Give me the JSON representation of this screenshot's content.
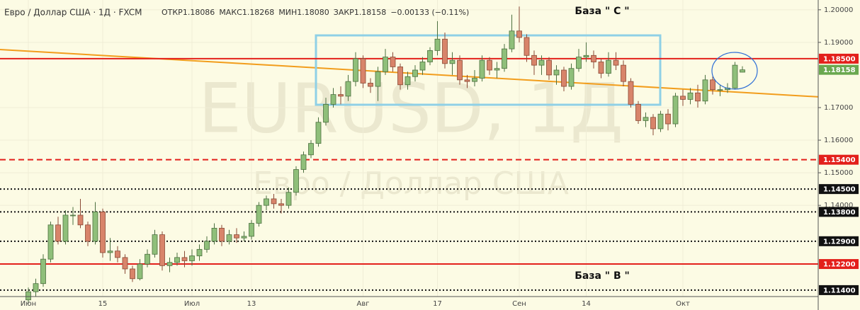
{
  "chart_data": {
    "type": "candlestick",
    "title": "Евро / Доллар США · 1Д · FXCM",
    "stats": [
      "ОТКР1.18086",
      "МАКС1.18268",
      "МИН1.18080",
      "ЗАКР1.18158",
      "−0.00133 (−0.11%)"
    ],
    "watermark": "EURUSD, 1Д",
    "watermark_subtitle": "Евро / Доллар США",
    "annotations": [
      "База  \" С \"",
      "База  \" В \""
    ],
    "categories": [
      "Июн",
      null,
      null,
      null,
      null,
      null,
      null,
      null,
      null,
      null,
      "15",
      null,
      null,
      null,
      null,
      null,
      null,
      null,
      null,
      null,
      null,
      null,
      "Июл",
      null,
      null,
      null,
      null,
      null,
      null,
      null,
      "13",
      null,
      null,
      null,
      null,
      null,
      null,
      null,
      null,
      null,
      null,
      null,
      null,
      null,
      null,
      "Авг",
      null,
      null,
      null,
      null,
      null,
      null,
      null,
      null,
      null,
      "17",
      null,
      null,
      null,
      null,
      null,
      null,
      null,
      null,
      null,
      null,
      "Сен",
      null,
      null,
      null,
      null,
      null,
      null,
      null,
      null,
      "14",
      null,
      null,
      null,
      null,
      null,
      null,
      null,
      null,
      null,
      null,
      null,
      null,
      "Окт",
      null,
      null,
      null,
      null,
      null,
      null,
      null,
      null
    ],
    "open": [
      1.111,
      1.1135,
      1.116,
      1.1235,
      1.134,
      1.129,
      1.137,
      1.137,
      1.134,
      1.129,
      1.138,
      1.1255,
      1.126,
      1.124,
      1.1205,
      1.1175,
      1.122,
      1.125,
      1.131,
      1.1215,
      1.1225,
      1.124,
      1.123,
      1.1245,
      1.1265,
      1.129,
      1.133,
      1.129,
      1.131,
      1.13,
      1.1305,
      1.1345,
      1.14,
      1.142,
      1.1405,
      1.14,
      1.144,
      1.151,
      1.1555,
      1.159,
      1.1655,
      1.171,
      1.174,
      1.1735,
      1.178,
      1.185,
      1.1775,
      1.1765,
      1.181,
      1.1855,
      1.1825,
      1.177,
      1.1795,
      1.1815,
      1.184,
      1.1875,
      1.191,
      1.1835,
      1.1845,
      1.1785,
      1.178,
      1.179,
      1.1845,
      1.1815,
      1.182,
      1.188,
      1.1935,
      1.1915,
      1.186,
      1.183,
      1.1845,
      1.18,
      1.1815,
      1.1765,
      1.182,
      1.1855,
      1.186,
      1.184,
      1.1805,
      1.1845,
      1.183,
      1.178,
      1.171,
      1.166,
      1.167,
      1.1635,
      1.168,
      1.165,
      1.1735,
      1.1725,
      1.1745,
      1.172,
      1.1785,
      1.1755,
      1.1755,
      1.176,
      1.18086
    ],
    "high": [
      1.1148,
      1.1175,
      1.125,
      1.135,
      1.1365,
      1.1385,
      1.1395,
      1.142,
      1.135,
      1.141,
      1.139,
      1.13,
      1.1275,
      1.125,
      1.1215,
      1.1235,
      1.1265,
      1.1325,
      1.132,
      1.124,
      1.1255,
      1.126,
      1.1265,
      1.128,
      1.1305,
      1.1345,
      1.134,
      1.1325,
      1.133,
      1.132,
      1.1355,
      1.141,
      1.143,
      1.1435,
      1.142,
      1.1455,
      1.152,
      1.1565,
      1.16,
      1.167,
      1.173,
      1.176,
      1.1765,
      1.18,
      1.187,
      1.186,
      1.179,
      1.1825,
      1.188,
      1.187,
      1.1835,
      1.181,
      1.183,
      1.1855,
      1.1885,
      1.1965,
      1.193,
      1.187,
      1.186,
      1.18,
      1.1815,
      1.186,
      1.1855,
      1.184,
      1.1895,
      1.1985,
      1.201,
      1.1925,
      1.1875,
      1.186,
      1.1855,
      1.183,
      1.1825,
      1.1835,
      1.188,
      1.19,
      1.1875,
      1.185,
      1.187,
      1.187,
      1.1845,
      1.179,
      1.172,
      1.1685,
      1.168,
      1.169,
      1.1695,
      1.1745,
      1.1755,
      1.176,
      1.177,
      1.18,
      1.1795,
      1.177,
      1.1775,
      1.184,
      1.18268
    ],
    "low": [
      1.1098,
      1.112,
      1.115,
      1.1225,
      1.128,
      1.128,
      1.134,
      1.133,
      1.1275,
      1.128,
      1.124,
      1.123,
      1.1225,
      1.119,
      1.1165,
      1.117,
      1.121,
      1.124,
      1.12,
      1.1195,
      1.1215,
      1.121,
      1.1215,
      1.123,
      1.1255,
      1.128,
      1.1275,
      1.128,
      1.1285,
      1.129,
      1.1295,
      1.1335,
      1.1385,
      1.139,
      1.1375,
      1.139,
      1.143,
      1.15,
      1.1545,
      1.158,
      1.1645,
      1.17,
      1.171,
      1.172,
      1.1765,
      1.176,
      1.1745,
      1.172,
      1.18,
      1.181,
      1.1755,
      1.1755,
      1.178,
      1.18,
      1.183,
      1.186,
      1.182,
      1.18,
      1.177,
      1.176,
      1.1765,
      1.178,
      1.18,
      1.179,
      1.181,
      1.187,
      1.19,
      1.184,
      1.18,
      1.18,
      1.1785,
      1.177,
      1.175,
      1.1755,
      1.181,
      1.184,
      1.182,
      1.179,
      1.1795,
      1.1815,
      1.1765,
      1.17,
      1.165,
      1.164,
      1.1615,
      1.1625,
      1.163,
      1.164,
      1.1705,
      1.171,
      1.17,
      1.171,
      1.174,
      1.1735,
      1.1745,
      1.1755,
      1.1808
    ],
    "close": [
      1.1135,
      1.116,
      1.1235,
      1.134,
      1.129,
      1.137,
      1.137,
      1.134,
      1.129,
      1.138,
      1.1255,
      1.126,
      1.124,
      1.1205,
      1.1175,
      1.122,
      1.125,
      1.131,
      1.1215,
      1.1225,
      1.124,
      1.123,
      1.1245,
      1.1265,
      1.129,
      1.133,
      1.129,
      1.131,
      1.13,
      1.1305,
      1.1345,
      1.14,
      1.142,
      1.1405,
      1.14,
      1.144,
      1.151,
      1.1555,
      1.159,
      1.1655,
      1.171,
      1.174,
      1.1735,
      1.178,
      1.185,
      1.1775,
      1.1765,
      1.181,
      1.1855,
      1.1825,
      1.177,
      1.1795,
      1.1815,
      1.184,
      1.1875,
      1.191,
      1.1835,
      1.1845,
      1.1785,
      1.178,
      1.179,
      1.1845,
      1.1815,
      1.182,
      1.188,
      1.1935,
      1.1915,
      1.186,
      1.183,
      1.1845,
      1.18,
      1.1815,
      1.1765,
      1.182,
      1.1855,
      1.186,
      1.184,
      1.1805,
      1.1845,
      1.183,
      1.178,
      1.171,
      1.166,
      1.167,
      1.1635,
      1.168,
      1.165,
      1.1735,
      1.1725,
      1.1745,
      1.172,
      1.1785,
      1.1755,
      1.1755,
      1.176,
      1.183,
      1.18158
    ],
    "up_color": "#8fbf7a",
    "down_color": "#d8846a",
    "ylim": [
      1.1079,
      1.203
    ],
    "yticks": [
      {
        "value": 1.2,
        "label": "1.20000"
      },
      {
        "value": 1.19,
        "label": "1.19000"
      },
      {
        "value": 1.17,
        "label": "1.17000"
      },
      {
        "value": 1.16,
        "label": "1.16000"
      },
      {
        "value": 1.15,
        "label": "1.15000"
      },
      {
        "value": 1.14,
        "label": "1.14000"
      }
    ],
    "levels": [
      {
        "value": 1.185,
        "label": "1.18500",
        "color": "#e3201b",
        "style": "solid"
      },
      {
        "value": 1.154,
        "label": "1.15400",
        "color": "#e3201b",
        "style": "dashed"
      },
      {
        "value": 1.145,
        "label": "1.14500",
        "color": "#111111",
        "style": "dotted"
      },
      {
        "value": 1.138,
        "label": "1.13800",
        "color": "#111111",
        "style": "dotted"
      },
      {
        "value": 1.129,
        "label": "1.12900",
        "color": "#111111",
        "style": "dotted"
      },
      {
        "value": 1.122,
        "label": "1.12200",
        "color": "#e3201b",
        "style": "solid"
      },
      {
        "value": 1.114,
        "label": "1.11400",
        "color": "#111111",
        "style": "dotted"
      }
    ],
    "last_price": {
      "value": 1.18158,
      "label": "1.18158",
      "color": "#6aa84f"
    }
  }
}
